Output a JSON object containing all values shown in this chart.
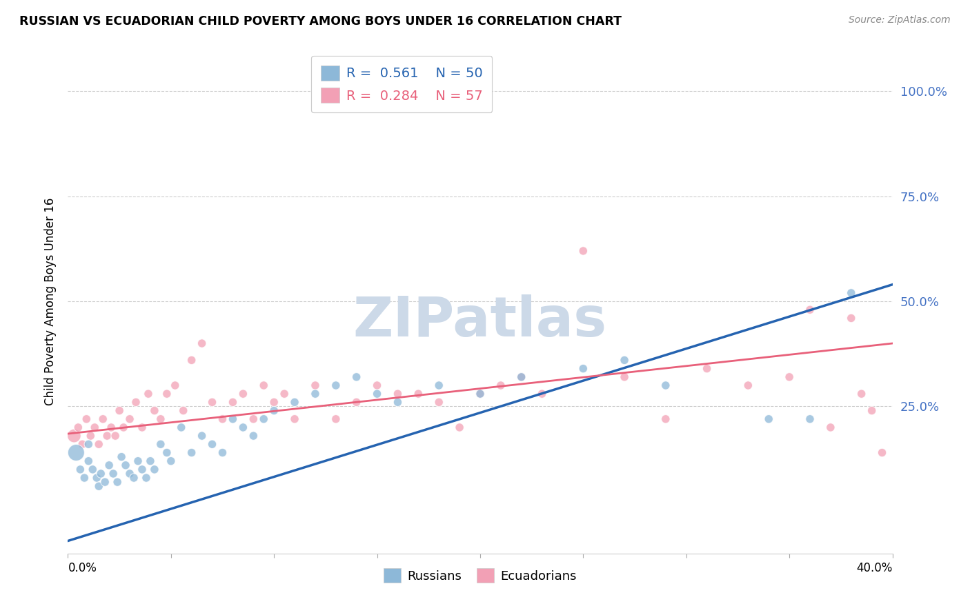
{
  "title": "RUSSIAN VS ECUADORIAN CHILD POVERTY AMONG BOYS UNDER 16 CORRELATION CHART",
  "source": "Source: ZipAtlas.com",
  "ylabel": "Child Poverty Among Boys Under 16",
  "ytick_labels": [
    "100.0%",
    "75.0%",
    "50.0%",
    "25.0%"
  ],
  "ytick_vals": [
    1.0,
    0.75,
    0.5,
    0.25
  ],
  "xlim": [
    0.0,
    0.4
  ],
  "ylim": [
    -0.1,
    1.1
  ],
  "russian_R": 0.561,
  "russian_N": 50,
  "ecuadorian_R": 0.284,
  "ecuadorian_N": 57,
  "russian_color": "#8db8d8",
  "ecuadorian_color": "#f2a0b5",
  "russian_line_color": "#2563b0",
  "ecuadorian_line_color": "#e8607a",
  "watermark": "ZIPatlas",
  "watermark_color": "#ccd9e8",
  "russian_line_x0": 0.0,
  "russian_line_y0": -0.07,
  "russian_line_x1": 0.4,
  "russian_line_y1": 0.54,
  "ecuadorian_line_x0": 0.0,
  "ecuadorian_line_y0": 0.185,
  "ecuadorian_line_x1": 0.4,
  "ecuadorian_line_y1": 0.4,
  "russian_points_x": [
    0.004,
    0.006,
    0.008,
    0.01,
    0.01,
    0.012,
    0.014,
    0.015,
    0.016,
    0.018,
    0.02,
    0.022,
    0.024,
    0.026,
    0.028,
    0.03,
    0.032,
    0.034,
    0.036,
    0.038,
    0.04,
    0.042,
    0.045,
    0.048,
    0.05,
    0.055,
    0.06,
    0.065,
    0.07,
    0.075,
    0.08,
    0.085,
    0.09,
    0.095,
    0.1,
    0.11,
    0.12,
    0.13,
    0.14,
    0.15,
    0.16,
    0.18,
    0.2,
    0.22,
    0.25,
    0.27,
    0.29,
    0.34,
    0.36,
    0.38
  ],
  "russian_points_y": [
    0.14,
    0.1,
    0.08,
    0.12,
    0.16,
    0.1,
    0.08,
    0.06,
    0.09,
    0.07,
    0.11,
    0.09,
    0.07,
    0.13,
    0.11,
    0.09,
    0.08,
    0.12,
    0.1,
    0.08,
    0.12,
    0.1,
    0.16,
    0.14,
    0.12,
    0.2,
    0.14,
    0.18,
    0.16,
    0.14,
    0.22,
    0.2,
    0.18,
    0.22,
    0.24,
    0.26,
    0.28,
    0.3,
    0.32,
    0.28,
    0.26,
    0.3,
    0.28,
    0.32,
    0.34,
    0.36,
    0.3,
    0.22,
    0.22,
    0.52
  ],
  "russian_sizes": [
    300,
    80,
    80,
    80,
    80,
    80,
    80,
    80,
    80,
    80,
    80,
    80,
    80,
    80,
    80,
    80,
    80,
    80,
    80,
    80,
    80,
    80,
    80,
    80,
    80,
    80,
    80,
    80,
    80,
    80,
    80,
    80,
    80,
    80,
    80,
    80,
    80,
    80,
    80,
    80,
    80,
    80,
    80,
    80,
    80,
    80,
    80,
    80,
    80,
    80
  ],
  "ecuadorian_points_x": [
    0.003,
    0.005,
    0.007,
    0.009,
    0.011,
    0.013,
    0.015,
    0.017,
    0.019,
    0.021,
    0.023,
    0.025,
    0.027,
    0.03,
    0.033,
    0.036,
    0.039,
    0.042,
    0.045,
    0.048,
    0.052,
    0.056,
    0.06,
    0.065,
    0.07,
    0.075,
    0.08,
    0.085,
    0.09,
    0.095,
    0.1,
    0.105,
    0.11,
    0.12,
    0.13,
    0.14,
    0.15,
    0.16,
    0.17,
    0.18,
    0.19,
    0.2,
    0.21,
    0.22,
    0.23,
    0.25,
    0.27,
    0.29,
    0.31,
    0.33,
    0.35,
    0.36,
    0.37,
    0.38,
    0.385,
    0.39,
    0.395
  ],
  "ecuadorian_points_y": [
    0.18,
    0.2,
    0.16,
    0.22,
    0.18,
    0.2,
    0.16,
    0.22,
    0.18,
    0.2,
    0.18,
    0.24,
    0.2,
    0.22,
    0.26,
    0.2,
    0.28,
    0.24,
    0.22,
    0.28,
    0.3,
    0.24,
    0.36,
    0.4,
    0.26,
    0.22,
    0.26,
    0.28,
    0.22,
    0.3,
    0.26,
    0.28,
    0.22,
    0.3,
    0.22,
    0.26,
    0.3,
    0.28,
    0.28,
    0.26,
    0.2,
    0.28,
    0.3,
    0.32,
    0.28,
    0.62,
    0.32,
    0.22,
    0.34,
    0.3,
    0.32,
    0.48,
    0.2,
    0.46,
    0.28,
    0.24,
    0.14
  ],
  "ecuadorian_sizes": [
    200,
    80,
    80,
    80,
    80,
    80,
    80,
    80,
    80,
    80,
    80,
    80,
    80,
    80,
    80,
    80,
    80,
    80,
    80,
    80,
    80,
    80,
    80,
    80,
    80,
    80,
    80,
    80,
    80,
    80,
    80,
    80,
    80,
    80,
    80,
    80,
    80,
    80,
    80,
    80,
    80,
    80,
    80,
    80,
    80,
    80,
    80,
    80,
    80,
    80,
    80,
    80,
    80,
    80,
    80,
    80,
    80
  ]
}
